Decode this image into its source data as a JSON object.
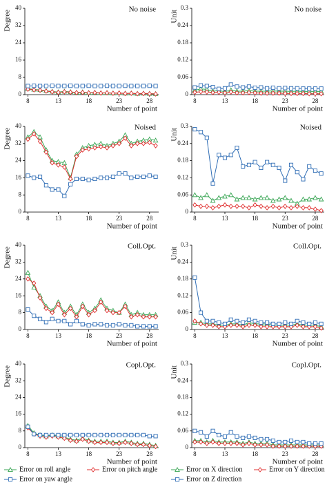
{
  "chart_data": [
    {
      "type": "line",
      "title": "No noise",
      "ylabel": "Degree",
      "xlabel": "Number of point",
      "x": [
        8,
        9,
        10,
        11,
        12,
        13,
        14,
        15,
        16,
        17,
        18,
        19,
        20,
        21,
        22,
        23,
        24,
        25,
        26,
        27,
        28,
        29
      ],
      "xlim": [
        7.5,
        29.5
      ],
      "xticks": [
        8,
        13,
        18,
        23,
        28
      ],
      "ylim": [
        0,
        40
      ],
      "yticks": [
        0,
        8,
        16,
        24,
        32,
        40
      ],
      "series": [
        {
          "color": "#3aa655",
          "marker": "triangle",
          "values": [
            2.8,
            2.4,
            2.2,
            1.8,
            1.5,
            1.2,
            1.5,
            1.3,
            1.0,
            1.2,
            0.9,
            1.0,
            0.8,
            0.9,
            0.7,
            0.8,
            0.6,
            0.7,
            0.5,
            0.6,
            0.5,
            0.4
          ]
        },
        {
          "color": "#e03030",
          "marker": "diamond",
          "values": [
            2.5,
            2.2,
            2.0,
            1.6,
            1.3,
            1.0,
            1.3,
            1.1,
            0.9,
            1.0,
            0.8,
            0.9,
            0.7,
            0.8,
            0.6,
            0.7,
            0.5,
            0.6,
            0.4,
            0.5,
            0.4,
            0.3
          ]
        },
        {
          "color": "#2f6db5",
          "marker": "square",
          "values": [
            4.0,
            4.1,
            4.0,
            4.0,
            4.1,
            4.0,
            4.0,
            4.1,
            4.0,
            4.0,
            4.1,
            4.0,
            4.0,
            4.1,
            4.0,
            4.0,
            4.1,
            4.0,
            4.0,
            4.0,
            4.1,
            4.0
          ]
        }
      ]
    },
    {
      "type": "line",
      "title": "No noise",
      "ylabel": "Unit",
      "xlabel": "Number of point",
      "x": [
        8,
        9,
        10,
        11,
        12,
        13,
        14,
        15,
        16,
        17,
        18,
        19,
        20,
        21,
        22,
        23,
        24,
        25,
        26,
        27,
        28,
        29
      ],
      "xlim": [
        7.5,
        29.5
      ],
      "xticks": [
        8,
        13,
        18,
        23,
        28
      ],
      "ylim": [
        0,
        0.3
      ],
      "yticks": [
        0,
        0.06,
        0.12,
        0.18,
        0.24,
        0.3
      ],
      "series": [
        {
          "color": "#3aa655",
          "marker": "triangle",
          "values": [
            0.015,
            0.02,
            0.018,
            0.012,
            0.014,
            0.01,
            0.016,
            0.012,
            0.012,
            0.014,
            0.012,
            0.012,
            0.012,
            0.013,
            0.012,
            0.012,
            0.011,
            0.012,
            0.011,
            0.011,
            0.011,
            0.011
          ]
        },
        {
          "color": "#e03030",
          "marker": "diamond",
          "values": [
            0.008,
            0.01,
            0.009,
            0.007,
            0.008,
            0.006,
            0.009,
            0.006,
            0.006,
            0.007,
            0.006,
            0.005,
            0.005,
            0.005,
            0.005,
            0.004,
            0.004,
            0.004,
            0.004,
            0.003,
            0.003,
            0.003
          ]
        },
        {
          "color": "#2f6db5",
          "marker": "square",
          "values": [
            0.025,
            0.032,
            0.03,
            0.026,
            0.02,
            0.022,
            0.035,
            0.028,
            0.025,
            0.028,
            0.024,
            0.025,
            0.022,
            0.024,
            0.022,
            0.023,
            0.022,
            0.022,
            0.021,
            0.021,
            0.021,
            0.021
          ]
        }
      ]
    },
    {
      "type": "line",
      "title": "Noised",
      "ylabel": "Degree",
      "xlabel": "Number of point",
      "x": [
        8,
        9,
        10,
        11,
        12,
        13,
        14,
        15,
        16,
        17,
        18,
        19,
        20,
        21,
        22,
        23,
        24,
        25,
        26,
        27,
        28,
        29
      ],
      "xlim": [
        7.5,
        29.5
      ],
      "xticks": [
        8,
        13,
        18,
        23,
        28
      ],
      "ylim": [
        0,
        40
      ],
      "yticks": [
        0,
        8,
        16,
        24,
        32,
        40
      ],
      "series": [
        {
          "color": "#3aa655",
          "marker": "triangle",
          "values": [
            35,
            37.5,
            35,
            29,
            24,
            23.5,
            23,
            16,
            27,
            30,
            31,
            31.5,
            32,
            31,
            32,
            33,
            36,
            32,
            33,
            33.5,
            34,
            33.5
          ]
        },
        {
          "color": "#e03030",
          "marker": "diamond",
          "values": [
            34,
            36.5,
            33,
            28,
            23,
            22,
            21,
            15.5,
            26,
            29,
            29.5,
            30,
            30.5,
            30,
            31,
            32,
            34.5,
            31,
            32,
            32,
            32.5,
            31
          ]
        },
        {
          "color": "#2f6db5",
          "marker": "square",
          "values": [
            17,
            16,
            16.5,
            12.5,
            10.5,
            10.5,
            7.5,
            13,
            15.5,
            15.5,
            15,
            15.5,
            16,
            16,
            16.5,
            18,
            18,
            16,
            16.5,
            16.5,
            17,
            16.5
          ]
        }
      ]
    },
    {
      "type": "line",
      "title": "Noised",
      "ylabel": "Unit",
      "xlabel": "Number of point",
      "x": [
        8,
        9,
        10,
        11,
        12,
        13,
        14,
        15,
        16,
        17,
        18,
        19,
        20,
        21,
        22,
        23,
        24,
        25,
        26,
        27,
        28,
        29
      ],
      "xlim": [
        7.5,
        29.5
      ],
      "xticks": [
        8,
        13,
        18,
        23,
        28
      ],
      "ylim": [
        0,
        0.3
      ],
      "yticks": [
        0,
        0.06,
        0.12,
        0.18,
        0.24,
        0.3
      ],
      "series": [
        {
          "color": "#3aa655",
          "marker": "triangle",
          "values": [
            0.06,
            0.05,
            0.06,
            0.04,
            0.05,
            0.055,
            0.06,
            0.045,
            0.05,
            0.05,
            0.045,
            0.05,
            0.05,
            0.04,
            0.045,
            0.05,
            0.04,
            0.03,
            0.045,
            0.045,
            0.05,
            0.045
          ]
        },
        {
          "color": "#e03030",
          "marker": "diamond",
          "values": [
            0.025,
            0.02,
            0.02,
            0.015,
            0.02,
            0.025,
            0.02,
            0.02,
            0.02,
            0.015,
            0.025,
            0.02,
            0.015,
            0.02,
            0.015,
            0.02,
            0.015,
            0.02,
            0.015,
            0.015,
            0.01,
            0.005
          ]
        },
        {
          "color": "#2f6db5",
          "marker": "square",
          "values": [
            0.29,
            0.28,
            0.26,
            0.1,
            0.2,
            0.19,
            0.2,
            0.225,
            0.16,
            0.165,
            0.175,
            0.155,
            0.175,
            0.165,
            0.155,
            0.11,
            0.165,
            0.14,
            0.115,
            0.16,
            0.145,
            0.135
          ]
        }
      ]
    },
    {
      "type": "line",
      "title": "Coll.Opt.",
      "ylabel": "Degree",
      "xlabel": "Number of point",
      "x": [
        8,
        9,
        10,
        11,
        12,
        13,
        14,
        15,
        16,
        17,
        18,
        19,
        20,
        21,
        22,
        23,
        24,
        25,
        26,
        27,
        28,
        29
      ],
      "xlim": [
        7.5,
        29.5
      ],
      "xticks": [
        8,
        13,
        18,
        23,
        28
      ],
      "ylim": [
        0,
        40
      ],
      "yticks": [
        0,
        8,
        16,
        24,
        32,
        40
      ],
      "series": [
        {
          "color": "#3aa655",
          "marker": "triangle",
          "values": [
            27,
            20,
            16,
            11,
            9,
            13,
            8,
            11,
            7,
            12,
            8,
            10,
            14,
            10,
            9,
            8,
            12,
            7,
            8,
            7,
            7,
            7
          ]
        },
        {
          "color": "#e03030",
          "marker": "diamond",
          "values": [
            24,
            22,
            15,
            10,
            8,
            12,
            7,
            10,
            6,
            11,
            7,
            9,
            13,
            9,
            8,
            8,
            11,
            6,
            7,
            6,
            6,
            6
          ]
        },
        {
          "color": "#2f6db5",
          "marker": "square",
          "values": [
            9.5,
            6.5,
            5,
            3.5,
            5,
            4,
            4,
            2.5,
            4,
            2.5,
            2,
            2.5,
            2.5,
            2,
            2,
            2.5,
            2,
            2,
            1.5,
            1.5,
            1.5,
            1.5
          ]
        }
      ]
    },
    {
      "type": "line",
      "title": "Coll.Opt.",
      "ylabel": "Unit",
      "xlabel": "Number of point",
      "x": [
        8,
        9,
        10,
        11,
        12,
        13,
        14,
        15,
        16,
        17,
        18,
        19,
        20,
        21,
        22,
        23,
        24,
        25,
        26,
        27,
        28,
        29
      ],
      "xlim": [
        7.5,
        29.5
      ],
      "xticks": [
        8,
        13,
        18,
        23,
        28
      ],
      "ylim": [
        0,
        0.3
      ],
      "yticks": [
        0,
        0.06,
        0.12,
        0.18,
        0.24,
        0.3
      ],
      "series": [
        {
          "color": "#3aa655",
          "marker": "triangle",
          "values": [
            0.025,
            0.025,
            0.02,
            0.02,
            0.015,
            0.015,
            0.02,
            0.02,
            0.015,
            0.025,
            0.02,
            0.02,
            0.02,
            0.015,
            0.015,
            0.015,
            0.015,
            0.02,
            0.015,
            0.015,
            0.015,
            0.01
          ]
        },
        {
          "color": "#e03030",
          "marker": "diamond",
          "values": [
            0.03,
            0.02,
            0.015,
            0.015,
            0.01,
            0.01,
            0.015,
            0.015,
            0.01,
            0.015,
            0.015,
            0.01,
            0.01,
            0.01,
            0.01,
            0.01,
            0.01,
            0.015,
            0.01,
            0.01,
            0.01,
            0.005
          ]
        },
        {
          "color": "#2f6db5",
          "marker": "square",
          "values": [
            0.185,
            0.06,
            0.03,
            0.03,
            0.025,
            0.02,
            0.035,
            0.03,
            0.025,
            0.035,
            0.03,
            0.025,
            0.025,
            0.02,
            0.02,
            0.025,
            0.02,
            0.03,
            0.025,
            0.02,
            0.025,
            0.02
          ]
        }
      ]
    },
    {
      "type": "line",
      "title": "Copl.Opt.",
      "ylabel": "Degree",
      "xlabel": "Number of point",
      "x": [
        8,
        9,
        10,
        11,
        12,
        13,
        14,
        15,
        16,
        17,
        18,
        19,
        20,
        21,
        22,
        23,
        24,
        25,
        26,
        27,
        28,
        29
      ],
      "xlim": [
        7.5,
        29.5
      ],
      "xticks": [
        8,
        13,
        18,
        23,
        28
      ],
      "ylim": [
        0,
        40
      ],
      "yticks": [
        0,
        8,
        16,
        24,
        32,
        40
      ],
      "series": [
        {
          "name": "Error on roll angle",
          "color": "#3aa655",
          "marker": "triangle",
          "values": [
            10.5,
            7,
            6,
            5.5,
            6,
            5.5,
            5,
            4,
            3.5,
            4.5,
            3.5,
            3,
            3,
            3,
            2.5,
            2.5,
            3,
            2.5,
            2,
            2,
            1.5,
            1
          ]
        },
        {
          "name": "Error on pitch angle",
          "color": "#e03030",
          "marker": "diamond",
          "values": [
            9.5,
            6.5,
            5.5,
            5,
            5.5,
            5,
            4.5,
            3.5,
            3,
            4,
            3,
            2.5,
            2.5,
            2.5,
            2,
            2,
            2.5,
            2,
            1.5,
            1.5,
            1,
            0.5
          ]
        },
        {
          "name": "Error on yaw angle",
          "color": "#2f6db5",
          "marker": "square",
          "values": [
            10,
            6.5,
            6,
            6,
            6,
            6,
            6,
            6,
            6,
            6,
            6,
            6,
            6,
            6,
            6,
            6,
            6,
            6,
            6,
            6,
            5.5,
            5.5
          ]
        }
      ]
    },
    {
      "type": "line",
      "title": "Copl.Opt.",
      "ylabel": "Unit",
      "xlabel": "Number of point",
      "x": [
        8,
        9,
        10,
        11,
        12,
        13,
        14,
        15,
        16,
        17,
        18,
        19,
        20,
        21,
        22,
        23,
        24,
        25,
        26,
        27,
        28,
        29
      ],
      "xlim": [
        7.5,
        29.5
      ],
      "xticks": [
        8,
        13,
        18,
        23,
        28
      ],
      "ylim": [
        0,
        0.3
      ],
      "yticks": [
        0,
        0.06,
        0.12,
        0.18,
        0.24,
        0.3
      ],
      "series": [
        {
          "name": "Error on X direction",
          "color": "#3aa655",
          "marker": "triangle",
          "values": [
            0.025,
            0.025,
            0.02,
            0.025,
            0.02,
            0.02,
            0.02,
            0.02,
            0.015,
            0.02,
            0.015,
            0.015,
            0.015,
            0.01,
            0.01,
            0.01,
            0.01,
            0.01,
            0.01,
            0.01,
            0.01,
            0.01
          ]
        },
        {
          "name": "Error on Y direction",
          "color": "#e03030",
          "marker": "diamond",
          "values": [
            0.02,
            0.02,
            0.015,
            0.02,
            0.015,
            0.015,
            0.015,
            0.015,
            0.01,
            0.015,
            0.01,
            0.01,
            0.01,
            0.005,
            0.005,
            0.005,
            0.005,
            0.005,
            0.005,
            0.005,
            0.005,
            0.005
          ]
        },
        {
          "name": "Error on Z direction",
          "color": "#2f6db5",
          "marker": "square",
          "values": [
            0.06,
            0.055,
            0.04,
            0.06,
            0.045,
            0.04,
            0.055,
            0.04,
            0.035,
            0.04,
            0.035,
            0.03,
            0.03,
            0.025,
            0.02,
            0.02,
            0.025,
            0.02,
            0.02,
            0.015,
            0.015,
            0.015
          ]
        }
      ]
    }
  ]
}
